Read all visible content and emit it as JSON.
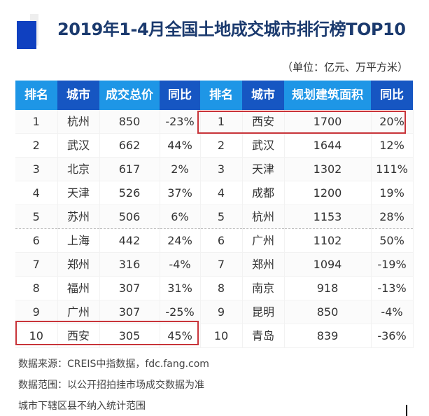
{
  "title": "2019年1-4月全国土地成交城市排行榜TOP10",
  "unit": "（单位：亿元、万平方米）",
  "headers": [
    "排名",
    "城市",
    "成交总价",
    "同比",
    "排名",
    "城市",
    "规划建筑面积",
    "同比"
  ],
  "rows": [
    [
      "1",
      "杭州",
      "850",
      "-23%",
      "1",
      "西安",
      "1700",
      "20%"
    ],
    [
      "2",
      "武汉",
      "662",
      "44%",
      "2",
      "武汉",
      "1644",
      "12%"
    ],
    [
      "3",
      "北京",
      "617",
      "2%",
      "3",
      "天津",
      "1302",
      "111%"
    ],
    [
      "4",
      "天津",
      "526",
      "37%",
      "4",
      "成都",
      "1200",
      "19%"
    ],
    [
      "5",
      "苏州",
      "506",
      "6%",
      "5",
      "杭州",
      "1153",
      "28%"
    ],
    [
      "6",
      "上海",
      "442",
      "24%",
      "6",
      "广州",
      "1102",
      "50%"
    ],
    [
      "7",
      "郑州",
      "316",
      "-4%",
      "7",
      "郑州",
      "1094",
      "-19%"
    ],
    [
      "8",
      "福州",
      "307",
      "31%",
      "8",
      "南京",
      "918",
      "-13%"
    ],
    [
      "9",
      "广州",
      "307",
      "-25%",
      "9",
      "昆明",
      "850",
      "-4%"
    ],
    [
      "10",
      "西安",
      "305",
      "45%",
      "10",
      "青岛",
      "839",
      "-36%"
    ]
  ],
  "footer": [
    "数据来源：CREIS中指数据，fdc.fang.com",
    "数据范围：以公开招拍挂市场成交数据为准",
    "城市下辖区县不纳入统计范围"
  ],
  "colors": {
    "header_light": "#1e96e6",
    "header_dark": "#1656c2",
    "highlight": "#c8343a",
    "title": "#1b3a6e"
  }
}
